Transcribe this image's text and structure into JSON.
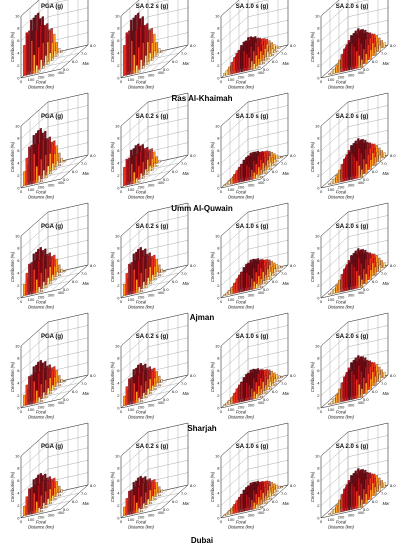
{
  "figure": {
    "row_titles": [
      "Ras Al-Khaimah",
      "Umm Al-Quwain",
      "Ajman",
      "Sharjah",
      "Dubai"
    ],
    "column_titles": [
      "PGA (g)",
      "SA 0.2 s (g)",
      "SA 1.0 s (g)",
      "SA 2.0 s (g)"
    ],
    "zlabel": "Contribution (%)",
    "xlabel_lines": [
      "Focal",
      "Distance (km)"
    ],
    "ylabel": "Mw",
    "z_ticks": [
      "0",
      "2",
      "4",
      "6",
      "8",
      "10"
    ],
    "x_ticks": [
      "0",
      "100",
      "200",
      "300",
      "400"
    ],
    "y_ticks": [
      "5.0",
      "6.0",
      "7.0",
      "8.0"
    ],
    "colors": [
      "#ffe08a",
      "#ff9a1f",
      "#e8331f",
      "#b3121b",
      "#6e0a14"
    ]
  },
  "chart_data": [
    {
      "type": "bar3d",
      "row": "Ras Al-Khaimah",
      "title": "PGA (g)",
      "mode_distance_km": 50,
      "peak_contribution_pct": 9.0
    },
    {
      "type": "bar3d",
      "row": "Ras Al-Khaimah",
      "title": "SA 0.2 s (g)",
      "mode_distance_km": 50,
      "peak_contribution_pct": 9.0
    },
    {
      "type": "bar3d",
      "row": "Ras Al-Khaimah",
      "title": "SA 1.0 s (g)",
      "mode_distance_km": 175,
      "peak_contribution_pct": 4.5
    },
    {
      "type": "bar3d",
      "row": "Ras Al-Khaimah",
      "title": "SA 2.0 s (g)",
      "mode_distance_km": 260,
      "peak_contribution_pct": 5.5
    },
    {
      "type": "bar3d",
      "row": "Umm Al-Quwain",
      "title": "PGA (g)",
      "mode_distance_km": 75,
      "peak_contribution_pct": 8.0
    },
    {
      "type": "bar3d",
      "row": "Umm Al-Quwain",
      "title": "SA 0.2 s (g)",
      "mode_distance_km": 50,
      "peak_contribution_pct": 5.5
    },
    {
      "type": "bar3d",
      "row": "Umm Al-Quwain",
      "title": "SA 1.0 s (g)",
      "mode_distance_km": 200,
      "peak_contribution_pct": 3.5
    },
    {
      "type": "bar3d",
      "row": "Umm Al-Quwain",
      "title": "SA 2.0 s (g)",
      "mode_distance_km": 260,
      "peak_contribution_pct": 5.5
    },
    {
      "type": "bar3d",
      "row": "Ajman",
      "title": "PGA (g)",
      "mode_distance_km": 75,
      "peak_contribution_pct": 6.5
    },
    {
      "type": "bar3d",
      "row": "Ajman",
      "title": "SA 0.2 s (g)",
      "mode_distance_km": 75,
      "peak_contribution_pct": 6.5
    },
    {
      "type": "bar3d",
      "row": "Ajman",
      "title": "SA 1.0 s (g)",
      "mode_distance_km": 200,
      "peak_contribution_pct": 4.0
    },
    {
      "type": "bar3d",
      "row": "Ajman",
      "title": "SA 2.0 s (g)",
      "mode_distance_km": 260,
      "peak_contribution_pct": 5.5
    },
    {
      "type": "bar3d",
      "row": "Sharjah",
      "title": "PGA (g)",
      "mode_distance_km": 75,
      "peak_contribution_pct": 6.0
    },
    {
      "type": "bar3d",
      "row": "Sharjah",
      "title": "SA 0.2 s (g)",
      "mode_distance_km": 75,
      "peak_contribution_pct": 5.5
    },
    {
      "type": "bar3d",
      "row": "Sharjah",
      "title": "SA 1.0 s (g)",
      "mode_distance_km": 200,
      "peak_contribution_pct": 4.0
    },
    {
      "type": "bar3d",
      "row": "Sharjah",
      "title": "SA 2.0 s (g)",
      "mode_distance_km": 260,
      "peak_contribution_pct": 6.0
    },
    {
      "type": "bar3d",
      "row": "Dubai",
      "title": "PGA (g)",
      "mode_distance_km": 75,
      "peak_contribution_pct": 5.5
    },
    {
      "type": "bar3d",
      "row": "Dubai",
      "title": "SA 0.2 s (g)",
      "mode_distance_km": 75,
      "peak_contribution_pct": 5.0
    },
    {
      "type": "bar3d",
      "row": "Dubai",
      "title": "SA 1.0 s (g)",
      "mode_distance_km": 200,
      "peak_contribution_pct": 3.5
    },
    {
      "type": "bar3d",
      "row": "Dubai",
      "title": "SA 2.0 s (g)",
      "mode_distance_km": 260,
      "peak_contribution_pct": 5.5
    }
  ]
}
